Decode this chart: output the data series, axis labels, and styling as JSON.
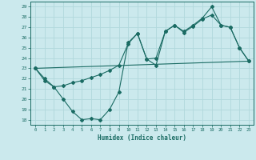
{
  "xlabel": "Humidex (Indice chaleur)",
  "background_color": "#cbe9ed",
  "grid_color": "#b0d8dc",
  "line_color": "#1a6b63",
  "xlim": [
    -0.5,
    23.5
  ],
  "ylim": [
    17.5,
    29.5
  ],
  "xticks": [
    0,
    1,
    2,
    3,
    4,
    5,
    6,
    7,
    8,
    9,
    10,
    11,
    12,
    13,
    14,
    15,
    16,
    17,
    18,
    19,
    20,
    21,
    22,
    23
  ],
  "yticks": [
    18,
    19,
    20,
    21,
    22,
    23,
    24,
    25,
    26,
    27,
    28,
    29
  ],
  "line1_x": [
    0,
    1,
    2,
    3,
    4,
    5,
    6,
    7,
    8,
    9,
    10,
    11,
    12,
    13,
    14,
    15,
    16,
    17,
    18,
    19,
    20,
    21,
    22,
    23
  ],
  "line1_y": [
    23.0,
    21.8,
    21.2,
    20.0,
    18.8,
    18.0,
    18.1,
    18.0,
    19.0,
    20.7,
    25.5,
    26.4,
    23.9,
    23.3,
    26.6,
    27.2,
    26.5,
    27.1,
    27.8,
    28.2,
    27.2,
    27.0,
    25.0,
    23.7
  ],
  "line2_x": [
    0,
    23
  ],
  "line2_y": [
    23.0,
    23.7
  ],
  "line3_x": [
    0,
    1,
    2,
    3,
    4,
    5,
    6,
    7,
    8,
    9,
    10,
    11,
    12,
    13,
    14,
    15,
    16,
    17,
    18,
    19,
    20,
    21,
    22,
    23
  ],
  "line3_y": [
    23.0,
    22.0,
    21.2,
    21.3,
    21.6,
    21.8,
    22.1,
    22.4,
    22.8,
    23.3,
    25.4,
    26.4,
    23.9,
    24.0,
    26.6,
    27.2,
    26.6,
    27.2,
    27.9,
    29.0,
    27.2,
    27.0,
    25.0,
    23.7
  ]
}
